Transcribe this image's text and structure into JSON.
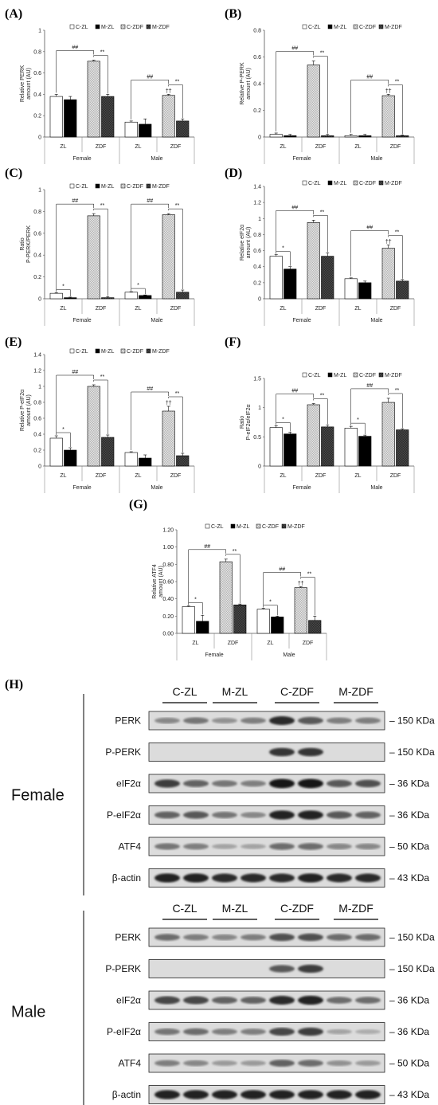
{
  "chart_data": [
    {
      "panel": "(A)",
      "type": "bar",
      "ylabel": [
        "Relative PERK",
        "amount (AU)"
      ],
      "ylim": [
        0,
        1
      ],
      "yticks": [
        "0",
        "0.2",
        "0.4",
        "0.6",
        "0.8",
        "1"
      ],
      "groups": [
        "Female",
        "Male"
      ],
      "subcategories": [
        "ZL",
        "ZDF"
      ],
      "series": [
        {
          "name": "C-ZL",
          "values": [
            0.38,
            0.14
          ]
        },
        {
          "name": "M-ZL",
          "values": [
            0.35,
            0.12
          ]
        },
        {
          "name": "C-ZDF",
          "values": [
            0.71,
            0.39
          ]
        },
        {
          "name": "M-ZDF",
          "values": [
            0.38,
            0.15
          ]
        }
      ],
      "errors": [
        [
          0.02,
          0.01
        ],
        [
          0.03,
          0.05
        ],
        [
          0.01,
          0.01
        ],
        [
          0.02,
          0.02
        ]
      ],
      "annotations": [
        {
          "group": 0,
          "type": "zdf",
          "near": "##",
          "far": "**"
        },
        {
          "group": 1,
          "type": "zdf",
          "near": "##",
          "far": "**",
          "dagger": "††"
        }
      ]
    },
    {
      "panel": "(B)",
      "type": "bar",
      "ylabel": [
        "Relative P-PERK",
        "amount (AU)"
      ],
      "ylim": [
        0,
        0.8
      ],
      "yticks": [
        "0",
        "0.2",
        "0.4",
        "0.6",
        "0.8"
      ],
      "groups": [
        "Female",
        "Male"
      ],
      "subcategories": [
        "ZL",
        "ZDF"
      ],
      "series": [
        {
          "name": "C-ZL",
          "values": [
            0.02,
            0.01
          ]
        },
        {
          "name": "M-ZL",
          "values": [
            0.01,
            0.01
          ]
        },
        {
          "name": "C-ZDF",
          "values": [
            0.54,
            0.31
          ]
        },
        {
          "name": "M-ZDF",
          "values": [
            0.01,
            0.01
          ]
        }
      ],
      "errors": [
        [
          0.01,
          0.01
        ],
        [
          0.01,
          0.01
        ],
        [
          0.03,
          0.01
        ],
        [
          0.01,
          0.005
        ]
      ],
      "annotations": [
        {
          "group": 0,
          "type": "zdf",
          "near": "##",
          "far": "**"
        },
        {
          "group": 1,
          "type": "zdf",
          "near": "##",
          "far": "**",
          "dagger": "††"
        }
      ]
    },
    {
      "panel": "(C)",
      "type": "bar",
      "ylabel": [
        "Ratio",
        "P-PERK/PERK"
      ],
      "ylim": [
        0,
        1
      ],
      "yticks": [
        "0",
        "0.2",
        "0.4",
        "0.6",
        "0.8",
        "1"
      ],
      "groups": [
        "Female",
        "Male"
      ],
      "subcategories": [
        "ZL",
        "ZDF"
      ],
      "series": [
        {
          "name": "C-ZL",
          "values": [
            0.05,
            0.06
          ]
        },
        {
          "name": "M-ZL",
          "values": [
            0.01,
            0.03
          ]
        },
        {
          "name": "C-ZDF",
          "values": [
            0.76,
            0.77
          ]
        },
        {
          "name": "M-ZDF",
          "values": [
            0.01,
            0.06
          ]
        }
      ],
      "errors": [
        [
          0.005,
          0.005
        ],
        [
          0.005,
          0.005
        ],
        [
          0.02,
          0.01
        ],
        [
          0.01,
          0.02
        ]
      ],
      "annotations": [
        {
          "group": 0,
          "type": "zl",
          "sig": "*"
        },
        {
          "group": 0,
          "type": "zdf",
          "near": "##",
          "far": "**"
        },
        {
          "group": 1,
          "type": "zl",
          "sig": "*"
        },
        {
          "group": 1,
          "type": "zdf",
          "near": "##",
          "far": "**"
        }
      ]
    },
    {
      "panel": "(D)",
      "type": "bar",
      "ylabel": [
        "Relative eIF2α",
        "amount (AU)"
      ],
      "ylim": [
        0,
        1.4
      ],
      "yticks": [
        "0",
        "0.2",
        "0.4",
        "0.6",
        "0.8",
        "1",
        "1.2",
        "1.4"
      ],
      "groups": [
        "Female",
        "Male"
      ],
      "subcategories": [
        "ZL",
        "ZDF"
      ],
      "series": [
        {
          "name": "C-ZL",
          "values": [
            0.53,
            0.25
          ]
        },
        {
          "name": "M-ZL",
          "values": [
            0.37,
            0.2
          ]
        },
        {
          "name": "C-ZDF",
          "values": [
            0.95,
            0.63
          ]
        },
        {
          "name": "M-ZDF",
          "values": [
            0.53,
            0.22
          ]
        }
      ],
      "errors": [
        [
          0.02,
          0.01
        ],
        [
          0.03,
          0.02
        ],
        [
          0.03,
          0.04
        ],
        [
          0.04,
          0.02
        ]
      ],
      "annotations": [
        {
          "group": 0,
          "type": "zl",
          "sig": "*"
        },
        {
          "group": 0,
          "type": "zdf",
          "near": "##",
          "far": "**"
        },
        {
          "group": 1,
          "type": "zdf",
          "near": "##",
          "far": "**",
          "dagger": "††"
        }
      ]
    },
    {
      "panel": "(E)",
      "type": "bar",
      "ylabel": [
        "Relative P-eIF2α",
        "amount (AU)"
      ],
      "ylim": [
        0,
        1.4
      ],
      "yticks": [
        "0",
        "0.2",
        "0.4",
        "0.6",
        "0.8",
        "1",
        "1.2",
        "1.4"
      ],
      "groups": [
        "Female",
        "Male"
      ],
      "subcategories": [
        "ZL",
        "ZDF"
      ],
      "series": [
        {
          "name": "C-ZL",
          "values": [
            0.35,
            0.17
          ]
        },
        {
          "name": "M-ZL",
          "values": [
            0.2,
            0.1
          ]
        },
        {
          "name": "C-ZDF",
          "values": [
            1.0,
            0.69
          ]
        },
        {
          "name": "M-ZDF",
          "values": [
            0.36,
            0.13
          ]
        }
      ],
      "errors": [
        [
          0.03,
          0.01
        ],
        [
          0.03,
          0.04
        ],
        [
          0.02,
          0.06
        ],
        [
          0.03,
          0.03
        ]
      ],
      "annotations": [
        {
          "group": 0,
          "type": "zl",
          "sig": "*"
        },
        {
          "group": 0,
          "type": "zdf",
          "near": "##",
          "far": "**"
        },
        {
          "group": 1,
          "type": "zdf",
          "near": "##",
          "far": "**",
          "dagger": "††"
        }
      ]
    },
    {
      "panel": "(F)",
      "type": "bar",
      "ylabel": [
        "Ratio",
        "P-eIF2α/eIF2α"
      ],
      "ylim": [
        0,
        1.5
      ],
      "yticks": [
        "0",
        "0.5",
        "1",
        "1.5"
      ],
      "groups": [
        "Female",
        "Male"
      ],
      "subcategories": [
        "ZL",
        "ZDF"
      ],
      "series": [
        {
          "name": "C-ZL",
          "values": [
            0.66,
            0.65
          ]
        },
        {
          "name": "M-ZL",
          "values": [
            0.55,
            0.51
          ]
        },
        {
          "name": "C-ZDF",
          "values": [
            1.05,
            1.09
          ]
        },
        {
          "name": "M-ZDF",
          "values": [
            0.67,
            0.62
          ]
        }
      ],
      "errors": [
        [
          0.03,
          0.03
        ],
        [
          0.03,
          0.02
        ],
        [
          0.02,
          0.07
        ],
        [
          0.03,
          0.02
        ]
      ],
      "annotations": [
        {
          "group": 0,
          "type": "zl",
          "sig": "*"
        },
        {
          "group": 0,
          "type": "zdf",
          "near": "##",
          "far": "**"
        },
        {
          "group": 1,
          "type": "zl",
          "sig": "*"
        },
        {
          "group": 1,
          "type": "zdf",
          "near": "##",
          "far": "**"
        }
      ]
    },
    {
      "panel": "(G)",
      "type": "bar",
      "ylabel": [
        "Relative ATF4",
        "amount (AU)"
      ],
      "ylim": [
        0,
        1.2
      ],
      "yticks": [
        "0.00",
        "0.20",
        "0.40",
        "0.60",
        "0.80",
        "1.00",
        "1.20"
      ],
      "groups": [
        "Female",
        "Male"
      ],
      "subcategories": [
        "ZL",
        "ZDF"
      ],
      "series": [
        {
          "name": "C-ZL",
          "values": [
            0.31,
            0.28
          ]
        },
        {
          "name": "M-ZL",
          "values": [
            0.14,
            0.19
          ]
        },
        {
          "name": "C-ZDF",
          "values": [
            0.83,
            0.53
          ]
        },
        {
          "name": "M-ZDF",
          "values": [
            0.33,
            0.15
          ]
        }
      ],
      "errors": [
        [
          0.01,
          0.01
        ],
        [
          0.07,
          0.01
        ],
        [
          0.03,
          0.01
        ],
        [
          0.01,
          0.05
        ]
      ],
      "annotations": [
        {
          "group": 0,
          "type": "zl",
          "sig": "*"
        },
        {
          "group": 0,
          "type": "zdf",
          "near": "##",
          "far": "**"
        },
        {
          "group": 1,
          "type": "zl",
          "sig": "*"
        },
        {
          "group": 1,
          "type": "zdf",
          "near": "##",
          "far": "**",
          "dagger": "††"
        }
      ]
    }
  ],
  "blots": {
    "panel": "(H)",
    "lanes": [
      "C-ZL",
      "M-ZL",
      "C-ZDF",
      "M-ZDF"
    ],
    "sections": [
      {
        "sex": "Female",
        "rows": [
          {
            "name": "PERK",
            "kda": "– 150 KDa",
            "intensity": [
              0.35,
              0.45,
              0.3,
              0.4,
              0.85,
              0.6,
              0.4,
              0.4
            ]
          },
          {
            "name": "P-PERK",
            "kda": "– 150 KDa",
            "intensity": [
              0,
              0,
              0,
              0,
              0.8,
              0.8,
              0,
              0
            ]
          },
          {
            "name": "eIF2α",
            "kda": "– 36 KDa",
            "intensity": [
              0.75,
              0.55,
              0.45,
              0.4,
              0.95,
              0.95,
              0.6,
              0.65
            ]
          },
          {
            "name": "P-eIF2α",
            "kda": "– 36 KDa",
            "intensity": [
              0.55,
              0.6,
              0.45,
              0.35,
              0.9,
              0.9,
              0.6,
              0.55
            ]
          },
          {
            "name": "ATF4",
            "kda": "– 50 KDa",
            "intensity": [
              0.45,
              0.4,
              0.2,
              0.2,
              0.5,
              0.5,
              0.35,
              0.35
            ]
          },
          {
            "name": "β-actin",
            "kda": "– 43 KDa",
            "intensity": [
              0.9,
              0.9,
              0.85,
              0.85,
              0.85,
              0.9,
              0.85,
              0.85
            ]
          }
        ]
      },
      {
        "sex": "Male",
        "rows": [
          {
            "name": "PERK",
            "kda": "– 150 KDa",
            "intensity": [
              0.5,
              0.4,
              0.35,
              0.4,
              0.65,
              0.65,
              0.5,
              0.5
            ]
          },
          {
            "name": "P-PERK",
            "kda": "– 150 KDa",
            "intensity": [
              0,
              0,
              0,
              0,
              0.6,
              0.75,
              0,
              0
            ]
          },
          {
            "name": "eIF2α",
            "kda": "– 36 KDa",
            "intensity": [
              0.7,
              0.7,
              0.55,
              0.55,
              0.85,
              0.9,
              0.5,
              0.5
            ]
          },
          {
            "name": "P-eIF2α",
            "kda": "– 36 KDa",
            "intensity": [
              0.45,
              0.5,
              0.4,
              0.4,
              0.7,
              0.75,
              0.2,
              0.15
            ]
          },
          {
            "name": "ATF4",
            "kda": "– 50 KDa",
            "intensity": [
              0.4,
              0.35,
              0.25,
              0.25,
              0.55,
              0.5,
              0.3,
              0.25
            ]
          },
          {
            "name": "β-actin",
            "kda": "– 43 KDa",
            "intensity": [
              0.9,
              0.9,
              0.9,
              0.9,
              0.9,
              0.9,
              0.9,
              0.9
            ]
          }
        ]
      }
    ]
  },
  "colors": {
    "c_zl": "#ffffff",
    "m_zl": "#000000",
    "c_zdf": "#cfcfcf",
    "m_zdf": "#3a3a3a",
    "blot_bg": "#dcdcdc"
  }
}
